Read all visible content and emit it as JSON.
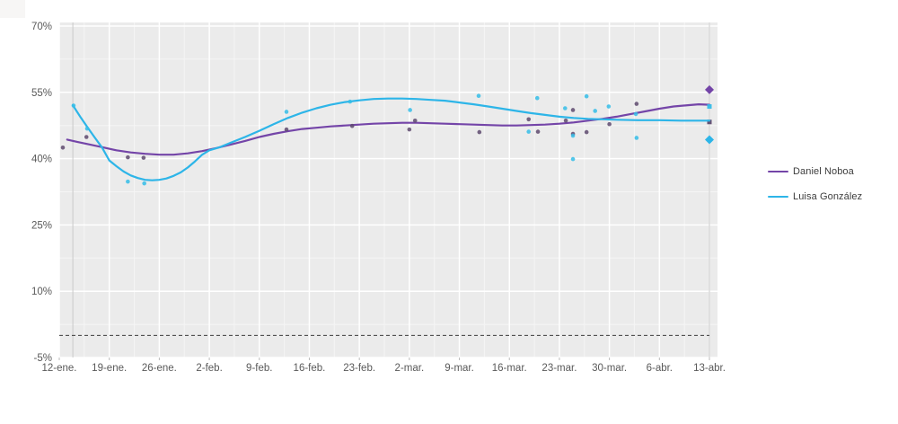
{
  "chart_data": {
    "type": "scatter",
    "title": "",
    "legend_position": "right",
    "grid": "on",
    "x_axis": {
      "tick_labels": [
        "12-ene.",
        "19-ene.",
        "26-ene.",
        "2-feb.",
        "9-feb.",
        "16-feb.",
        "23-feb.",
        "2-mar.",
        "9-mar.",
        "16-mar.",
        "23-mar.",
        "30-mar.",
        "6-abr.",
        "13-abr."
      ],
      "tick_days": [
        0,
        7,
        14,
        21,
        28,
        35,
        42,
        49,
        56,
        63,
        70,
        77,
        84,
        91
      ],
      "range_days": [
        0,
        92.2
      ]
    },
    "y_axis": {
      "tick_labels": [
        "70%",
        "55%",
        "40%",
        "25%",
        "10%",
        "-5%"
      ],
      "tick_values": [
        70,
        55,
        40,
        25,
        10,
        -5
      ],
      "minor_values": [
        62.5,
        47.5,
        32.5,
        17.5,
        2.5
      ],
      "range": [
        -5,
        70.8
      ]
    },
    "reference": {
      "dashed_line_value": 0,
      "vertical_line_days": [
        1.9,
        91
      ]
    },
    "style": {
      "panel_bg": "#ebebeb",
      "grid_major": "#ffffff",
      "grid_minor": "#f5f5f5",
      "axis_text_color": "#595959",
      "dashed_line_color": "#3c3c3c",
      "ref_line_color": "#c9c9c9",
      "tick_color": "#bbbbbb"
    },
    "series": [
      {
        "name": "Daniel Noboa",
        "line_color": "#7445a8",
        "point_color": "#5e4a6e",
        "points": [
          [
            0.5,
            42.5
          ],
          [
            3.8,
            44.9
          ],
          [
            9.6,
            40.3
          ],
          [
            11.8,
            40.2
          ],
          [
            31.8,
            46.6
          ],
          [
            41.0,
            47.4
          ],
          [
            49.0,
            46.6
          ],
          [
            49.8,
            48.6
          ],
          [
            58.8,
            46.0
          ],
          [
            65.7,
            48.9
          ],
          [
            67.0,
            46.1
          ],
          [
            70.9,
            48.6
          ],
          [
            71.9,
            51.0
          ],
          [
            71.9,
            45.6
          ],
          [
            73.8,
            46.0
          ],
          [
            77.0,
            47.8
          ],
          [
            80.8,
            52.4
          ]
        ],
        "end_square": [
          91,
          48.3
        ],
        "result_diamond": [
          91,
          55.6
        ],
        "trend": [
          [
            1.1,
            44.3
          ],
          [
            2.5,
            43.8
          ],
          [
            4,
            43.3
          ],
          [
            6,
            42.6
          ],
          [
            8,
            41.9
          ],
          [
            10,
            41.4
          ],
          [
            12,
            41.1
          ],
          [
            14,
            40.9
          ],
          [
            16,
            40.9
          ],
          [
            18,
            41.2
          ],
          [
            20,
            41.7
          ],
          [
            22,
            42.4
          ],
          [
            24,
            43.2
          ],
          [
            26,
            44.0
          ],
          [
            28,
            44.9
          ],
          [
            30,
            45.6
          ],
          [
            32,
            46.2
          ],
          [
            34,
            46.7
          ],
          [
            36,
            47.0
          ],
          [
            38,
            47.3
          ],
          [
            40,
            47.5
          ],
          [
            42,
            47.7
          ],
          [
            44,
            47.9
          ],
          [
            46,
            48.0
          ],
          [
            48,
            48.1
          ],
          [
            50,
            48.1
          ],
          [
            52,
            48.0
          ],
          [
            54,
            47.9
          ],
          [
            56,
            47.8
          ],
          [
            58,
            47.7
          ],
          [
            60,
            47.6
          ],
          [
            62,
            47.5
          ],
          [
            64,
            47.5
          ],
          [
            66,
            47.6
          ],
          [
            68,
            47.7
          ],
          [
            70,
            47.9
          ],
          [
            72,
            48.2
          ],
          [
            74,
            48.6
          ],
          [
            76,
            49.0
          ],
          [
            78,
            49.5
          ],
          [
            80,
            50.1
          ],
          [
            82,
            50.7
          ],
          [
            84,
            51.3
          ],
          [
            86,
            51.8
          ],
          [
            88,
            52.1
          ],
          [
            89.5,
            52.3
          ],
          [
            91,
            52.2
          ]
        ]
      },
      {
        "name": "Luisa González",
        "line_color": "#2db5e8",
        "point_color": "#35bde8",
        "points": [
          [
            2.0,
            52.0
          ],
          [
            3.9,
            46.8
          ],
          [
            9.6,
            34.8
          ],
          [
            11.9,
            34.4
          ],
          [
            31.8,
            50.6
          ],
          [
            40.7,
            52.9
          ],
          [
            49.1,
            51.0
          ],
          [
            58.7,
            54.2
          ],
          [
            65.7,
            46.1
          ],
          [
            66.9,
            53.7
          ],
          [
            70.8,
            51.4
          ],
          [
            71.9,
            39.9
          ],
          [
            71.9,
            45.2
          ],
          [
            73.8,
            54.1
          ],
          [
            75.0,
            50.8
          ],
          [
            76.9,
            51.8
          ],
          [
            80.7,
            50.1
          ],
          [
            80.8,
            44.7
          ]
        ],
        "end_square": [
          91,
          51.8
        ],
        "result_diamond": [
          91,
          44.3
        ],
        "trend": [
          [
            1.9,
            52.1
          ],
          [
            3,
            49.3
          ],
          [
            4,
            47.0
          ],
          [
            5,
            44.7
          ],
          [
            6,
            42.5
          ],
          [
            7,
            39.6
          ],
          [
            8,
            38.3
          ],
          [
            9,
            37.1
          ],
          [
            10,
            36.2
          ],
          [
            11,
            35.6
          ],
          [
            12,
            35.2
          ],
          [
            13,
            35.1
          ],
          [
            14,
            35.2
          ],
          [
            15,
            35.5
          ],
          [
            16,
            36.1
          ],
          [
            17,
            36.9
          ],
          [
            18,
            38.0
          ],
          [
            19,
            39.4
          ],
          [
            20,
            40.9
          ],
          [
            21,
            41.9
          ],
          [
            22.5,
            42.6
          ],
          [
            24,
            43.6
          ],
          [
            26,
            44.9
          ],
          [
            28,
            46.3
          ],
          [
            30,
            47.8
          ],
          [
            32,
            49.2
          ],
          [
            34,
            50.4
          ],
          [
            36,
            51.4
          ],
          [
            38,
            52.2
          ],
          [
            40,
            52.8
          ],
          [
            42,
            53.2
          ],
          [
            44,
            53.5
          ],
          [
            46,
            53.6
          ],
          [
            48,
            53.6
          ],
          [
            50,
            53.5
          ],
          [
            52,
            53.3
          ],
          [
            54,
            53.1
          ],
          [
            56,
            52.7
          ],
          [
            58,
            52.3
          ],
          [
            60,
            51.8
          ],
          [
            62,
            51.3
          ],
          [
            64,
            50.8
          ],
          [
            66,
            50.3
          ],
          [
            68,
            49.9
          ],
          [
            70,
            49.5
          ],
          [
            72,
            49.2
          ],
          [
            74,
            49.0
          ],
          [
            76,
            48.9
          ],
          [
            78,
            48.8
          ],
          [
            81,
            48.7
          ],
          [
            84,
            48.7
          ],
          [
            87,
            48.6
          ],
          [
            91,
            48.6
          ]
        ]
      }
    ]
  }
}
